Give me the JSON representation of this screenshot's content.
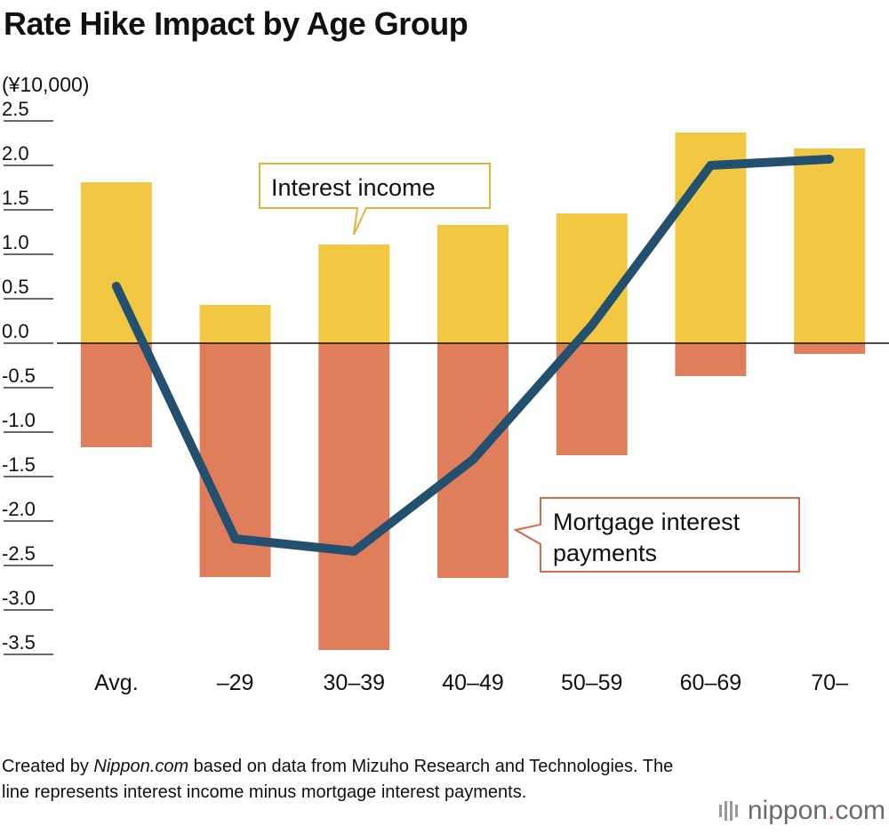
{
  "title": "Rate Hike Impact by Age Group",
  "unit": "(¥10,000)",
  "chart_data": {
    "type": "bar",
    "title": "Rate Hike Impact by Age Group",
    "ylabel": "(¥10,000)",
    "xlabel": "",
    "ylim": [
      -3.5,
      2.5
    ],
    "yticks": [
      "2.5",
      "2.0",
      "1.5",
      "1.0",
      "0.5",
      "0.0",
      "-0.5",
      "-1.0",
      "-1.5",
      "-2.0",
      "-2.5",
      "-3.0",
      "-3.5"
    ],
    "categories": [
      "Avg.",
      "–29",
      "30–39",
      "40–49",
      "50–59",
      "60–69",
      "70–"
    ],
    "series": [
      {
        "name": "Interest income",
        "kind": "bar",
        "color": "#f2c842",
        "values": [
          1.81,
          0.43,
          1.11,
          1.33,
          1.46,
          2.37,
          2.19
        ]
      },
      {
        "name": "Mortgage interest payments",
        "kind": "bar",
        "color": "#e07e5c",
        "values": [
          -1.17,
          -2.63,
          -3.45,
          -2.64,
          -1.26,
          -0.37,
          -0.12
        ]
      },
      {
        "name": "",
        "kind": "line",
        "color": "#23506e",
        "values": [
          0.64,
          -2.2,
          -2.34,
          -1.31,
          0.2,
          2.0,
          2.07
        ]
      }
    ],
    "annotations": [
      "Interest income",
      "Mortgage interest",
      "payments"
    ],
    "grid": false
  },
  "footer": {
    "prefix": "Created by ",
    "source_name": "Nippon.com",
    "suffix": " based on data from Mizuho Research and Technologies. The line represents interest income minus mortgage interest payments."
  },
  "logo": {
    "name": "nippon",
    "dot": ".",
    "tld": "com"
  }
}
